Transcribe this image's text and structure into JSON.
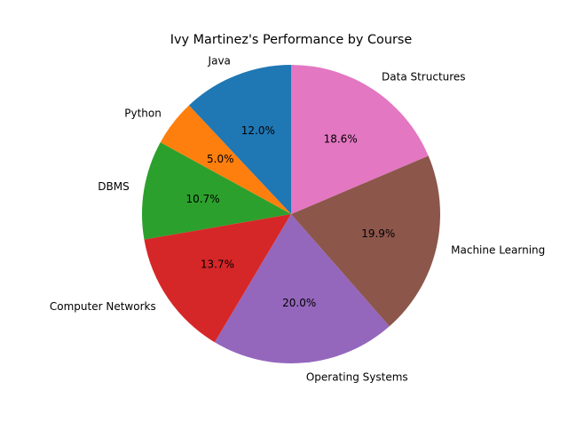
{
  "chart_data": {
    "type": "pie",
    "title": "Ivy Martinez's Performance by Course",
    "start_angle_deg": 90,
    "direction": "counterclockwise",
    "slices": [
      {
        "label": "Java",
        "percent": 12.0,
        "percent_label": "12.0%",
        "color": "#1f77b4"
      },
      {
        "label": "Python",
        "percent": 5.0,
        "percent_label": "5.0%",
        "color": "#ff7f0e"
      },
      {
        "label": "DBMS",
        "percent": 10.7,
        "percent_label": "10.7%",
        "color": "#2ca02c"
      },
      {
        "label": "Computer Networks",
        "percent": 13.7,
        "percent_label": "13.7%",
        "color": "#d62728"
      },
      {
        "label": "Operating Systems",
        "percent": 20.0,
        "percent_label": "20.0%",
        "color": "#9467bd"
      },
      {
        "label": "Machine Learning",
        "percent": 19.9,
        "percent_label": "19.9%",
        "color": "#8c564b"
      },
      {
        "label": "Data Structures",
        "percent": 18.6,
        "percent_label": "18.6%",
        "color": "#e377c2"
      }
    ]
  }
}
